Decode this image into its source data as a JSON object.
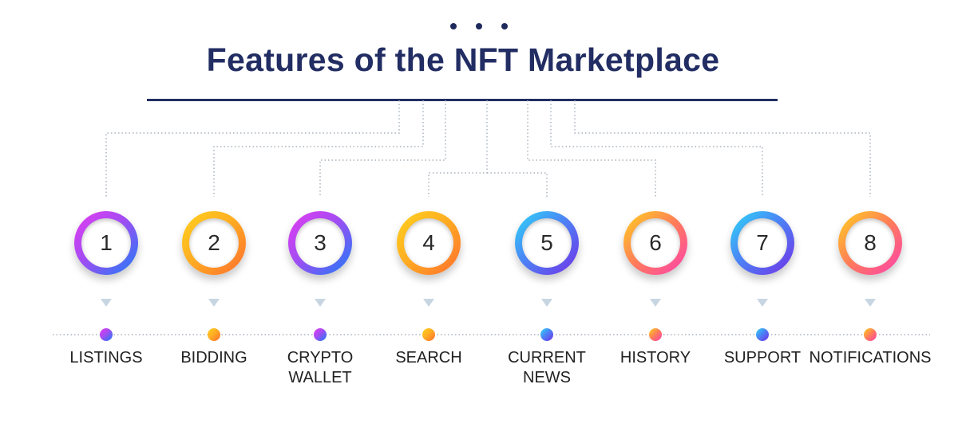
{
  "title": "Features of the NFT Marketplace",
  "features": [
    {
      "number": "1",
      "label": "LISTINGS",
      "gradient": "g-pb"
    },
    {
      "number": "2",
      "label": "BIDDING",
      "gradient": "g-yo"
    },
    {
      "number": "3",
      "label": "CRYPTO\nWALLET",
      "gradient": "g-pb"
    },
    {
      "number": "4",
      "label": "SEARCH",
      "gradient": "g-yo"
    },
    {
      "number": "5",
      "label": "CURRENT\nNEWS",
      "gradient": "g-cv"
    },
    {
      "number": "6",
      "label": "HISTORY",
      "gradient": "g-yp"
    },
    {
      "number": "7",
      "label": "SUPPORT",
      "gradient": "g-cv"
    },
    {
      "number": "8",
      "label": "NOTIFICATIONS",
      "gradient": "g-yp"
    }
  ],
  "colors": {
    "title": "#222d63",
    "connector": "#aab3bd",
    "arrow": "#c8d6e2"
  }
}
